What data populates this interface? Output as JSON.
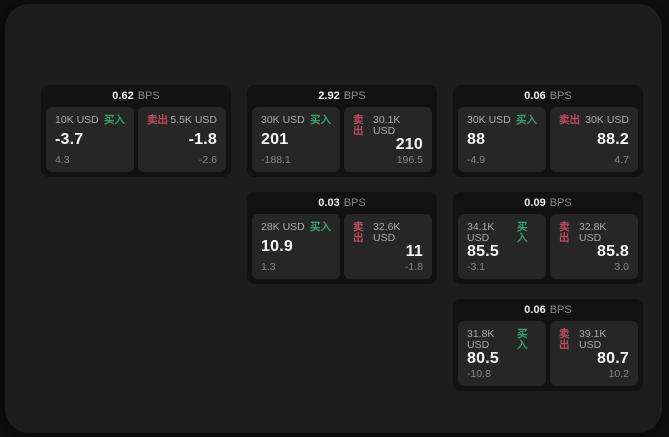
{
  "labels": {
    "bps_suffix": "BPS",
    "buy": "买入",
    "sell": "卖出"
  },
  "colors": {
    "buy": "#36a06a",
    "sell": "#bf4a5f",
    "window_bg": "#1d1d1d",
    "card_bg": "#121212",
    "panel_bg": "#262626"
  },
  "cards": [
    {
      "row": 1,
      "col": 1,
      "bps": "0.62",
      "buy": {
        "amount": "10K USD",
        "value": "-3.7",
        "sub": "4.3"
      },
      "sell": {
        "amount": "5.5K USD",
        "value": "-1.8",
        "sub": "-2.6"
      }
    },
    {
      "row": 1,
      "col": 2,
      "bps": "2.92",
      "buy": {
        "amount": "30K USD",
        "value": "201",
        "sub": "-188.1"
      },
      "sell": {
        "amount": "30.1K USD",
        "value": "210",
        "sub": "196.5"
      }
    },
    {
      "row": 1,
      "col": 3,
      "bps": "0.06",
      "buy": {
        "amount": "30K USD",
        "value": "88",
        "sub": "-4.9"
      },
      "sell": {
        "amount": "30K USD",
        "value": "88.2",
        "sub": "4.7"
      }
    },
    {
      "row": 2,
      "col": 2,
      "bps": "0.03",
      "buy": {
        "amount": "28K USD",
        "value": "10.9",
        "sub": "1.3"
      },
      "sell": {
        "amount": "32.6K USD",
        "value": "11",
        "sub": "-1.8"
      }
    },
    {
      "row": 2,
      "col": 3,
      "bps": "0.09",
      "buy": {
        "amount": "34.1K USD",
        "value": "85.5",
        "sub": "-3.1"
      },
      "sell": {
        "amount": "32.8K USD",
        "value": "85.8",
        "sub": "3.0"
      }
    },
    {
      "row": 3,
      "col": 3,
      "bps": "0.06",
      "buy": {
        "amount": "31.8K USD",
        "value": "80.5",
        "sub": "-10.8"
      },
      "sell": {
        "amount": "39.1K USD",
        "value": "80.7",
        "sub": "10.2"
      }
    }
  ]
}
